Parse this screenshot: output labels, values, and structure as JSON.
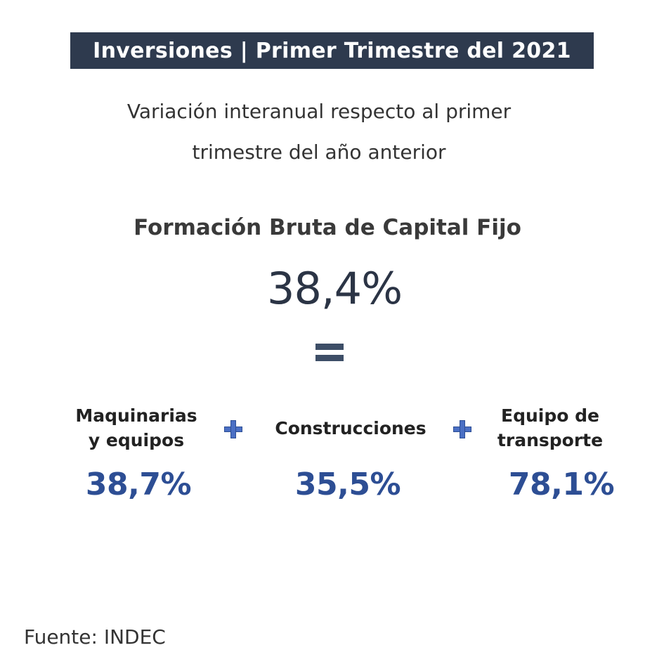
{
  "title": "Inversiones | Primer Trimestre del 2021",
  "subtitle": {
    "line1": "Variación interanual respecto al primer",
    "line2": "trimestre del año anterior"
  },
  "main": {
    "label": "Formación Bruta de Capital Fijo",
    "value": "38,4%"
  },
  "components": [
    {
      "label_line1": "Maquinarias",
      "label_line2": "y equipos",
      "value": "38,7%"
    },
    {
      "label_line1": "Construcciones",
      "label_line2": "",
      "value": "35,5%"
    },
    {
      "label_line1": "Equipo de",
      "label_line2": "transporte",
      "value": "78,1%"
    }
  ],
  "icons": {
    "equals": "equals-icon",
    "plus": "plus-icon"
  },
  "colors": {
    "banner": "#2e3a4e",
    "value_blue": "#2d4e94",
    "plus_blue": "#4a6fc4",
    "equals": "#3d4e67"
  },
  "source": "Fuente: INDEC"
}
